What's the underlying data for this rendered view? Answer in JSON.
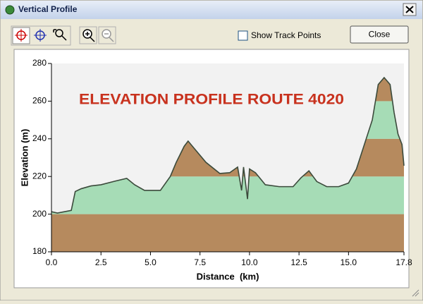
{
  "window": {
    "title": "Vertical Profile"
  },
  "toolbar": {
    "checkbox_label": "Show Track Points",
    "checked": false,
    "close_button": "Close"
  },
  "chart_data": {
    "type": "area",
    "annotation": "ELEVATION PROFILE ROUTE 4020",
    "xlabel": "Distance  (km)",
    "ylabel": "Elevation (m)",
    "x": [
      0.0,
      0.3,
      1.0,
      1.2,
      1.5,
      2.0,
      2.5,
      3.2,
      3.8,
      4.2,
      4.7,
      5.5,
      6.0,
      6.3,
      6.7,
      6.9,
      7.2,
      7.8,
      8.5,
      9.0,
      9.4,
      9.6,
      9.7,
      9.9,
      10.0,
      10.3,
      10.8,
      11.5,
      12.2,
      12.6,
      13.0,
      13.4,
      13.9,
      14.5,
      15.0,
      15.4,
      15.8,
      16.2,
      16.5,
      16.8,
      17.1,
      17.3,
      17.5,
      17.7,
      17.8
    ],
    "values": [
      201.3,
      200.6,
      202,
      212,
      213.5,
      215,
      215.6,
      217.5,
      219,
      215.6,
      212.6,
      212.6,
      220,
      227.5,
      236,
      238.8,
      235,
      227.5,
      221.6,
      222,
      225,
      212.6,
      225,
      208,
      224,
      222,
      215.6,
      214.6,
      214.6,
      219.3,
      223,
      217.3,
      214.6,
      214.6,
      216.5,
      224,
      237,
      250,
      268.8,
      272.5,
      268.8,
      254,
      242.5,
      237,
      225.7
    ],
    "color": "#3b4a3b",
    "band_colors": [
      "#b68a5e",
      "#a6dcb6"
    ],
    "annotation_color": "#c8321e",
    "xlim": [
      0,
      17.8
    ],
    "ylim": [
      180,
      280
    ],
    "xticks": [
      {
        "value": 0,
        "label": "0.0"
      },
      2.5,
      {
        "value": 5,
        "label": "5.0"
      },
      7.5,
      {
        "value": 10,
        "label": "10.0"
      },
      12.5,
      {
        "value": 15,
        "label": "15.0"
      },
      17.8
    ],
    "yticks": [
      180,
      200,
      220,
      240,
      260,
      280
    ],
    "grid": false
  }
}
